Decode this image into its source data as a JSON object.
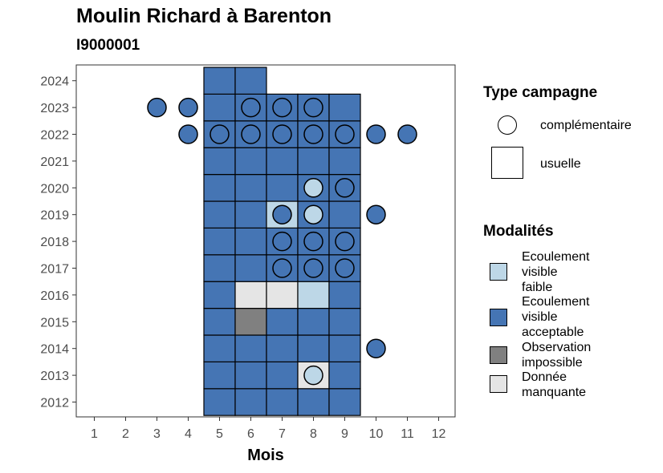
{
  "chart_data": {
    "type": "heatmap",
    "title": "Moulin Richard à Barenton",
    "subtitle": "I9000001",
    "xlabel": "Mois",
    "ylabel": "",
    "x_ticks": [
      1,
      2,
      3,
      4,
      5,
      6,
      7,
      8,
      9,
      10,
      11,
      12
    ],
    "y_ticks": [
      2012,
      2013,
      2014,
      2015,
      2016,
      2017,
      2018,
      2019,
      2020,
      2021,
      2022,
      2023,
      2024
    ],
    "xlim": [
      0.5,
      12.5
    ],
    "ylim": [
      2011.5,
      2024.5
    ],
    "grid": false,
    "colors": {
      "Ecoulement visible faible": "#bdd7e7",
      "Ecoulement visible acceptable": "#4575b4",
      "Observation impossible": "#808080",
      "Donnée manquante": "#e5e5e5"
    },
    "legend_shape": {
      "title": "Type campagne",
      "items": [
        {
          "label": "complémentaire",
          "shape": "circle"
        },
        {
          "label": "usuelle",
          "shape": "square"
        }
      ]
    },
    "legend_fill": {
      "title": "Modalités",
      "items": [
        {
          "label": "Ecoulement visible faible",
          "lines": [
            "Ecoulement",
            "visible",
            "faible"
          ],
          "color": "#bdd7e7"
        },
        {
          "label": "Ecoulement visible acceptable",
          "lines": [
            "Ecoulement",
            "visible",
            "acceptable"
          ],
          "color": "#4575b4"
        },
        {
          "label": "Observation impossible",
          "lines": [
            "Observation",
            "impossible"
          ],
          "color": "#808080"
        },
        {
          "label": "Donnée manquante",
          "lines": [
            "Donnée",
            "manquante"
          ],
          "color": "#e5e5e5"
        }
      ]
    },
    "usuelle": [
      {
        "year": 2012,
        "month": 5,
        "modalite": "Ecoulement visible acceptable"
      },
      {
        "year": 2012,
        "month": 6,
        "modalite": "Ecoulement visible acceptable"
      },
      {
        "year": 2012,
        "month": 7,
        "modalite": "Ecoulement visible acceptable"
      },
      {
        "year": 2012,
        "month": 8,
        "modalite": "Ecoulement visible acceptable"
      },
      {
        "year": 2012,
        "month": 9,
        "modalite": "Ecoulement visible acceptable"
      },
      {
        "year": 2013,
        "month": 5,
        "modalite": "Ecoulement visible acceptable"
      },
      {
        "year": 2013,
        "month": 6,
        "modalite": "Ecoulement visible acceptable"
      },
      {
        "year": 2013,
        "month": 7,
        "modalite": "Ecoulement visible acceptable"
      },
      {
        "year": 2013,
        "month": 8,
        "modalite": "Donnée manquante"
      },
      {
        "year": 2013,
        "month": 9,
        "modalite": "Ecoulement visible acceptable"
      },
      {
        "year": 2014,
        "month": 5,
        "modalite": "Ecoulement visible acceptable"
      },
      {
        "year": 2014,
        "month": 6,
        "modalite": "Ecoulement visible acceptable"
      },
      {
        "year": 2014,
        "month": 7,
        "modalite": "Ecoulement visible acceptable"
      },
      {
        "year": 2014,
        "month": 8,
        "modalite": "Ecoulement visible acceptable"
      },
      {
        "year": 2014,
        "month": 9,
        "modalite": "Ecoulement visible acceptable"
      },
      {
        "year": 2015,
        "month": 5,
        "modalite": "Ecoulement visible acceptable"
      },
      {
        "year": 2015,
        "month": 6,
        "modalite": "Observation impossible"
      },
      {
        "year": 2015,
        "month": 7,
        "modalite": "Ecoulement visible acceptable"
      },
      {
        "year": 2015,
        "month": 8,
        "modalite": "Ecoulement visible acceptable"
      },
      {
        "year": 2015,
        "month": 9,
        "modalite": "Ecoulement visible acceptable"
      },
      {
        "year": 2016,
        "month": 5,
        "modalite": "Ecoulement visible acceptable"
      },
      {
        "year": 2016,
        "month": 6,
        "modalite": "Donnée manquante"
      },
      {
        "year": 2016,
        "month": 7,
        "modalite": "Donnée manquante"
      },
      {
        "year": 2016,
        "month": 8,
        "modalite": "Ecoulement visible faible"
      },
      {
        "year": 2016,
        "month": 9,
        "modalite": "Ecoulement visible acceptable"
      },
      {
        "year": 2017,
        "month": 5,
        "modalite": "Ecoulement visible acceptable"
      },
      {
        "year": 2017,
        "month": 6,
        "modalite": "Ecoulement visible acceptable"
      },
      {
        "year": 2017,
        "month": 7,
        "modalite": "Ecoulement visible acceptable"
      },
      {
        "year": 2017,
        "month": 8,
        "modalite": "Ecoulement visible acceptable"
      },
      {
        "year": 2017,
        "month": 9,
        "modalite": "Ecoulement visible acceptable"
      },
      {
        "year": 2018,
        "month": 5,
        "modalite": "Ecoulement visible acceptable"
      },
      {
        "year": 2018,
        "month": 6,
        "modalite": "Ecoulement visible acceptable"
      },
      {
        "year": 2018,
        "month": 7,
        "modalite": "Ecoulement visible acceptable"
      },
      {
        "year": 2018,
        "month": 8,
        "modalite": "Ecoulement visible acceptable"
      },
      {
        "year": 2018,
        "month": 9,
        "modalite": "Ecoulement visible acceptable"
      },
      {
        "year": 2019,
        "month": 5,
        "modalite": "Ecoulement visible acceptable"
      },
      {
        "year": 2019,
        "month": 6,
        "modalite": "Ecoulement visible acceptable"
      },
      {
        "year": 2019,
        "month": 7,
        "modalite": "Ecoulement visible faible"
      },
      {
        "year": 2019,
        "month": 8,
        "modalite": "Ecoulement visible acceptable"
      },
      {
        "year": 2019,
        "month": 9,
        "modalite": "Ecoulement visible acceptable"
      },
      {
        "year": 2020,
        "month": 5,
        "modalite": "Ecoulement visible acceptable"
      },
      {
        "year": 2020,
        "month": 6,
        "modalite": "Ecoulement visible acceptable"
      },
      {
        "year": 2020,
        "month": 7,
        "modalite": "Ecoulement visible acceptable"
      },
      {
        "year": 2020,
        "month": 8,
        "modalite": "Ecoulement visible acceptable"
      },
      {
        "year": 2020,
        "month": 9,
        "modalite": "Ecoulement visible acceptable"
      },
      {
        "year": 2021,
        "month": 5,
        "modalite": "Ecoulement visible acceptable"
      },
      {
        "year": 2021,
        "month": 6,
        "modalite": "Ecoulement visible acceptable"
      },
      {
        "year": 2021,
        "month": 7,
        "modalite": "Ecoulement visible acceptable"
      },
      {
        "year": 2021,
        "month": 8,
        "modalite": "Ecoulement visible acceptable"
      },
      {
        "year": 2021,
        "month": 9,
        "modalite": "Ecoulement visible acceptable"
      },
      {
        "year": 2022,
        "month": 5,
        "modalite": "Ecoulement visible acceptable"
      },
      {
        "year": 2022,
        "month": 6,
        "modalite": "Ecoulement visible acceptable"
      },
      {
        "year": 2022,
        "month": 7,
        "modalite": "Ecoulement visible acceptable"
      },
      {
        "year": 2022,
        "month": 8,
        "modalite": "Ecoulement visible acceptable"
      },
      {
        "year": 2022,
        "month": 9,
        "modalite": "Ecoulement visible acceptable"
      },
      {
        "year": 2023,
        "month": 5,
        "modalite": "Ecoulement visible acceptable"
      },
      {
        "year": 2023,
        "month": 6,
        "modalite": "Ecoulement visible acceptable"
      },
      {
        "year": 2023,
        "month": 7,
        "modalite": "Ecoulement visible acceptable"
      },
      {
        "year": 2023,
        "month": 8,
        "modalite": "Ecoulement visible acceptable"
      },
      {
        "year": 2023,
        "month": 9,
        "modalite": "Ecoulement visible acceptable"
      },
      {
        "year": 2024,
        "month": 5,
        "modalite": "Ecoulement visible acceptable"
      },
      {
        "year": 2024,
        "month": 6,
        "modalite": "Ecoulement visible acceptable"
      }
    ],
    "complementaire": [
      {
        "year": 2013,
        "month": 8,
        "modalite": "Ecoulement visible faible"
      },
      {
        "year": 2014,
        "month": 10,
        "modalite": "Ecoulement visible acceptable"
      },
      {
        "year": 2017,
        "month": 7,
        "modalite": "Ecoulement visible acceptable"
      },
      {
        "year": 2017,
        "month": 8,
        "modalite": "Ecoulement visible acceptable"
      },
      {
        "year": 2017,
        "month": 9,
        "modalite": "Ecoulement visible acceptable"
      },
      {
        "year": 2018,
        "month": 7,
        "modalite": "Ecoulement visible acceptable"
      },
      {
        "year": 2018,
        "month": 8,
        "modalite": "Ecoulement visible acceptable"
      },
      {
        "year": 2018,
        "month": 9,
        "modalite": "Ecoulement visible acceptable"
      },
      {
        "year": 2019,
        "month": 7,
        "modalite": "Ecoulement visible acceptable"
      },
      {
        "year": 2019,
        "month": 8,
        "modalite": "Ecoulement visible faible"
      },
      {
        "year": 2019,
        "month": 10,
        "modalite": "Ecoulement visible acceptable"
      },
      {
        "year": 2020,
        "month": 8,
        "modalite": "Ecoulement visible faible"
      },
      {
        "year": 2020,
        "month": 9,
        "modalite": "Ecoulement visible acceptable"
      },
      {
        "year": 2022,
        "month": 4,
        "modalite": "Ecoulement visible acceptable"
      },
      {
        "year": 2022,
        "month": 5,
        "modalite": "Ecoulement visible acceptable"
      },
      {
        "year": 2022,
        "month": 6,
        "modalite": "Ecoulement visible acceptable"
      },
      {
        "year": 2022,
        "month": 7,
        "modalite": "Ecoulement visible acceptable"
      },
      {
        "year": 2022,
        "month": 8,
        "modalite": "Ecoulement visible acceptable"
      },
      {
        "year": 2022,
        "month": 9,
        "modalite": "Ecoulement visible acceptable"
      },
      {
        "year": 2022,
        "month": 10,
        "modalite": "Ecoulement visible acceptable"
      },
      {
        "year": 2022,
        "month": 11,
        "modalite": "Ecoulement visible acceptable"
      },
      {
        "year": 2023,
        "month": 3,
        "modalite": "Ecoulement visible acceptable"
      },
      {
        "year": 2023,
        "month": 4,
        "modalite": "Ecoulement visible acceptable"
      },
      {
        "year": 2023,
        "month": 6,
        "modalite": "Ecoulement visible acceptable"
      },
      {
        "year": 2023,
        "month": 7,
        "modalite": "Ecoulement visible acceptable"
      },
      {
        "year": 2023,
        "month": 8,
        "modalite": "Ecoulement visible acceptable"
      }
    ]
  }
}
